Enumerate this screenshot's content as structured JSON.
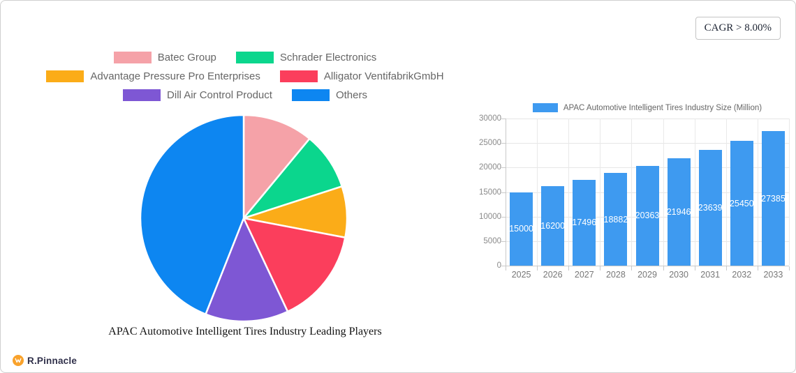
{
  "page": {
    "cagr_label": "CAGR > 8.00%",
    "brand": {
      "name": "R.Pinnacle",
      "icon_color": "#F9A22B"
    }
  },
  "chart_data": [
    {
      "type": "pie",
      "title": "APAC Automotive Intelligent Tires Industry Leading Players",
      "legend_position": "top",
      "unit": "percent_share",
      "slices": [
        {
          "label": "Batec Group",
          "value": 11,
          "color": "#F5A2A8"
        },
        {
          "label": "Schrader Electronics",
          "value": 9,
          "color": "#0BD68D"
        },
        {
          "label": "Advantage Pressure Pro Enterprises",
          "value": 8,
          "color": "#FBAC18"
        },
        {
          "label": "Alligator VentifabrikGmbH",
          "value": 15,
          "color": "#FB3E5C"
        },
        {
          "label": "Dill Air Control Product",
          "value": 13,
          "color": "#7E57D4"
        },
        {
          "label": "Others",
          "value": 44,
          "color": "#0D86F1"
        }
      ]
    },
    {
      "type": "bar",
      "series_label": "APAC Automotive Intelligent Tires Industry Size (Million)",
      "categories": [
        "2025",
        "2026",
        "2027",
        "2028",
        "2029",
        "2030",
        "2031",
        "2032",
        "2033"
      ],
      "values": [
        15000,
        16200,
        17496,
        18882,
        20363,
        21946,
        23639,
        25450,
        27385
      ],
      "bar_color": "#3E9AF0",
      "value_label_color": "#ffffff",
      "ylim": [
        0,
        30000
      ],
      "ytick_step": 5000,
      "grid": true,
      "legend_position": "top"
    }
  ]
}
